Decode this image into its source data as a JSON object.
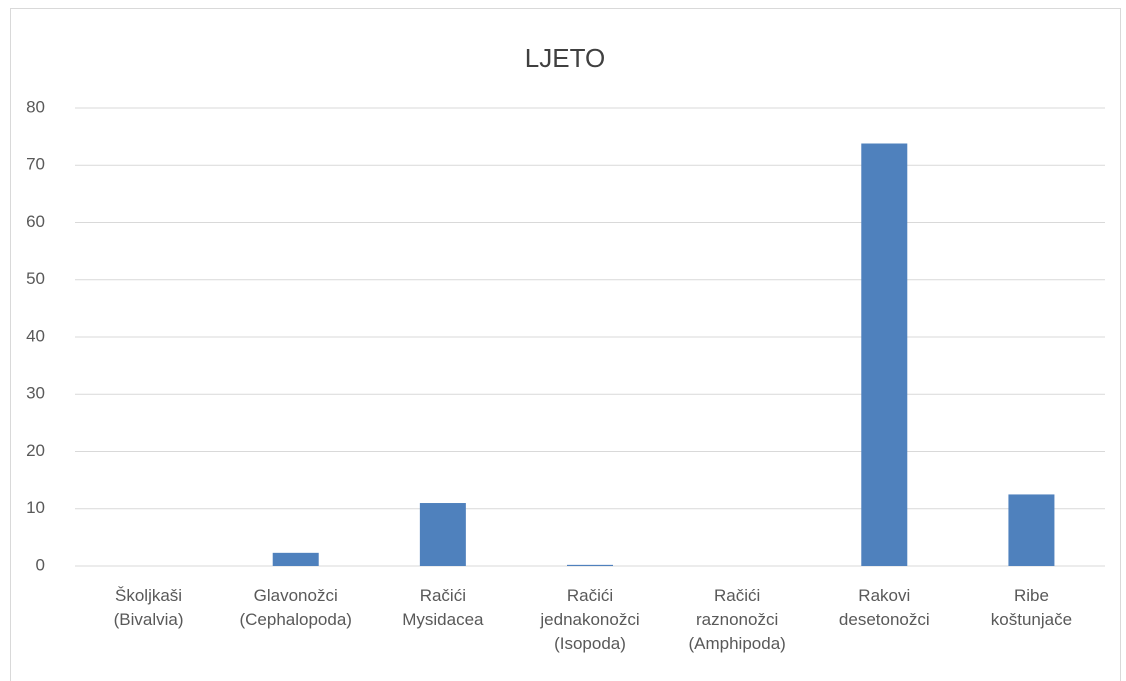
{
  "chart_data": {
    "type": "bar",
    "title": "LJETO",
    "categories": [
      "Školjkaši (Bivalvia)",
      "Glavonožci (Cephalopoda)",
      "Račići Mysidacea",
      "Račići jednakonožci (Isopoda)",
      "Račići raznonožci (Amphipoda)",
      "Rakovi desetonožci",
      "Ribe koštunjače"
    ],
    "values": [
      0,
      2.3,
      11,
      0.2,
      0,
      73.8,
      12.5
    ],
    "color": "#4f81bd",
    "ylim": [
      0,
      80
    ],
    "yticks": [
      0,
      10,
      20,
      30,
      40,
      50,
      60,
      70,
      80
    ],
    "grid": true
  }
}
